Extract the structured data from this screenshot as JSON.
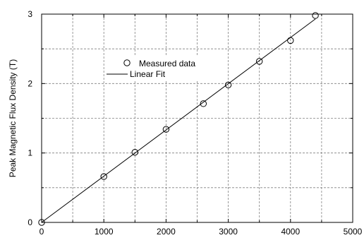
{
  "chart_data": {
    "type": "scatter",
    "title": "",
    "xlabel": "",
    "ylabel": "Peak Magnetic Flux Density (T)",
    "xlim": [
      0,
      5000
    ],
    "ylim": [
      0,
      3
    ],
    "xticks": [
      0,
      1000,
      2000,
      3000,
      4000,
      5000
    ],
    "yticks": [
      0,
      1,
      2,
      3
    ],
    "xtick_labels": [
      "0",
      "1000",
      "2000",
      "3000",
      "4000",
      "5000"
    ],
    "ytick_labels": [
      "0",
      "1",
      "2",
      "3"
    ],
    "grid": true,
    "legend_position": "upper-left",
    "series": [
      {
        "name": "Measured data",
        "marker": "open-circle",
        "x": [
          0,
          1000,
          1500,
          2000,
          2600,
          3000,
          3500,
          4000,
          4400
        ],
        "y": [
          0.0,
          0.66,
          1.01,
          1.34,
          1.71,
          1.98,
          2.32,
          2.62,
          2.98
        ]
      },
      {
        "name": "Linear Fit",
        "style": "line",
        "x": [
          0,
          4400
        ],
        "y": [
          0.0,
          2.93
        ]
      }
    ],
    "colors": {
      "marks": "#000000",
      "grid": "#808080",
      "background": "#ffffff"
    }
  }
}
